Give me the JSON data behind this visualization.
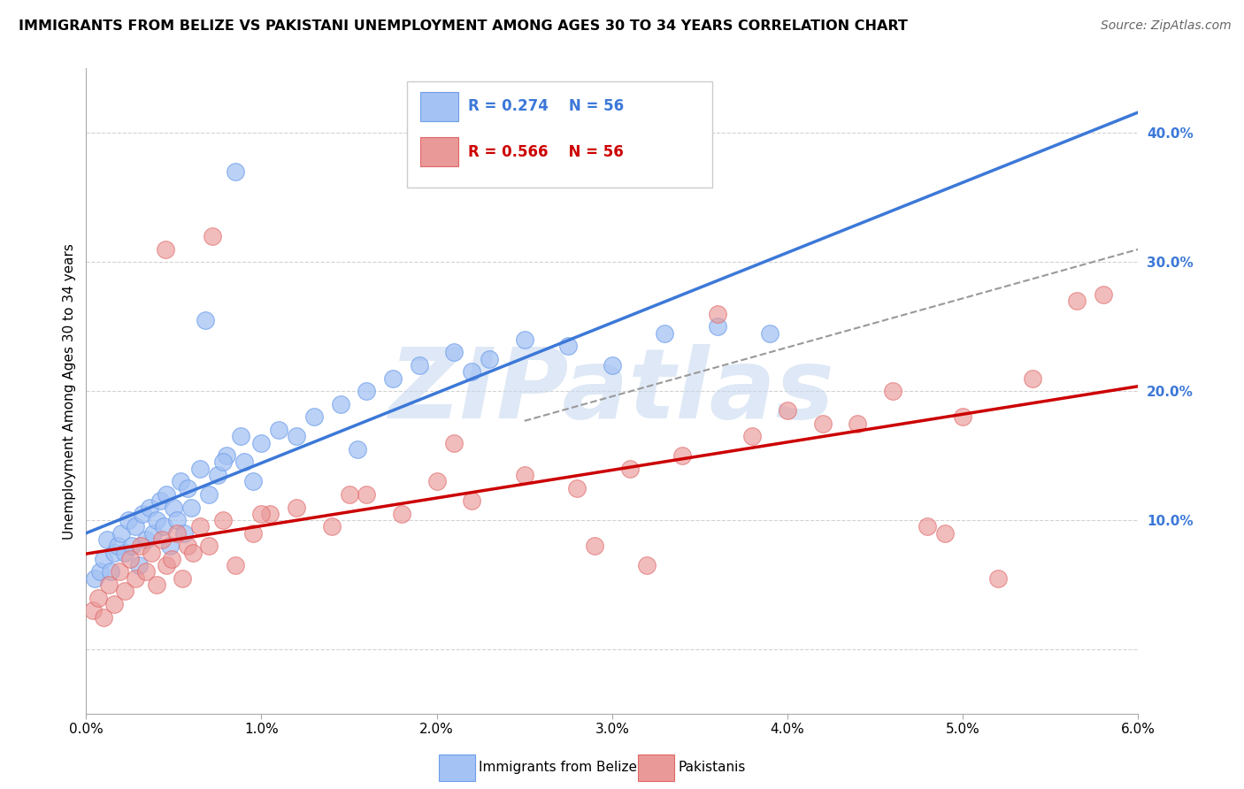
{
  "title": "IMMIGRANTS FROM BELIZE VS PAKISTANI UNEMPLOYMENT AMONG AGES 30 TO 34 YEARS CORRELATION CHART",
  "source": "Source: ZipAtlas.com",
  "ylabel": "Unemployment Among Ages 30 to 34 years",
  "xlim": [
    0.0,
    6.0
  ],
  "ylim": [
    -5.0,
    45.0
  ],
  "yticks_right": [
    10.0,
    20.0,
    30.0,
    40.0
  ],
  "ytick_labels_right": [
    "10.0%",
    "20.0%",
    "30.0%",
    "40.0%"
  ],
  "xtick_vals": [
    0,
    1,
    2,
    3,
    4,
    5,
    6
  ],
  "xtick_labels": [
    "0.0%",
    "1.0%",
    "2.0%",
    "3.0%",
    "4.0%",
    "5.0%",
    "6.0%"
  ],
  "blue_R": "R = 0.274",
  "blue_N": "N = 56",
  "pink_R": "R = 0.566",
  "pink_N": "N = 56",
  "blue_color": "#a4c2f4",
  "blue_edge_color": "#6d9eeb",
  "pink_color": "#ea9999",
  "pink_edge_color": "#e06666",
  "trend_blue_color": "#3c78d8",
  "trend_pink_color": "#cc0000",
  "trend_dashed_color": "#888888",
  "grid_color": "#c0c0c0",
  "watermark_color": "#c9d9f0",
  "watermark_text": "ZIPatlas",
  "legend_label_blue": "Immigrants from Belize",
  "legend_label_pink": "Pakistanis",
  "blue_x": [
    0.05,
    0.08,
    0.1,
    0.12,
    0.14,
    0.16,
    0.18,
    0.2,
    0.22,
    0.24,
    0.26,
    0.28,
    0.3,
    0.32,
    0.34,
    0.36,
    0.38,
    0.4,
    0.42,
    0.44,
    0.46,
    0.48,
    0.5,
    0.52,
    0.54,
    0.56,
    0.58,
    0.6,
    0.65,
    0.7,
    0.75,
    0.8,
    0.9,
    0.95,
    1.0,
    1.1,
    1.2,
    1.3,
    1.45,
    1.6,
    1.75,
    1.9,
    2.1,
    2.3,
    2.5,
    2.75,
    3.0,
    3.3,
    3.6,
    3.9,
    0.85,
    1.55,
    2.2,
    0.68,
    0.78,
    0.88
  ],
  "blue_y": [
    5.5,
    6.0,
    7.0,
    8.5,
    6.0,
    7.5,
    8.0,
    9.0,
    7.5,
    10.0,
    8.0,
    9.5,
    6.5,
    10.5,
    8.5,
    11.0,
    9.0,
    10.0,
    11.5,
    9.5,
    12.0,
    8.0,
    11.0,
    10.0,
    13.0,
    9.0,
    12.5,
    11.0,
    14.0,
    12.0,
    13.5,
    15.0,
    14.5,
    13.0,
    16.0,
    17.0,
    16.5,
    18.0,
    19.0,
    20.0,
    21.0,
    22.0,
    23.0,
    22.5,
    24.0,
    23.5,
    22.0,
    24.5,
    25.0,
    24.5,
    37.0,
    15.5,
    21.5,
    25.5,
    14.5,
    16.5
  ],
  "pink_x": [
    0.04,
    0.07,
    0.1,
    0.13,
    0.16,
    0.19,
    0.22,
    0.25,
    0.28,
    0.31,
    0.34,
    0.37,
    0.4,
    0.43,
    0.46,
    0.49,
    0.52,
    0.55,
    0.58,
    0.61,
    0.65,
    0.7,
    0.78,
    0.85,
    0.95,
    1.05,
    1.2,
    1.4,
    1.6,
    1.8,
    2.0,
    2.2,
    2.5,
    2.8,
    3.1,
    3.4,
    3.8,
    4.2,
    4.6,
    5.0,
    5.4,
    5.8,
    4.9,
    5.65,
    0.45,
    0.72,
    1.0,
    1.5,
    2.1,
    3.6,
    4.4,
    5.2,
    4.0,
    2.9,
    3.2,
    4.8
  ],
  "pink_y": [
    3.0,
    4.0,
    2.5,
    5.0,
    3.5,
    6.0,
    4.5,
    7.0,
    5.5,
    8.0,
    6.0,
    7.5,
    5.0,
    8.5,
    6.5,
    7.0,
    9.0,
    5.5,
    8.0,
    7.5,
    9.5,
    8.0,
    10.0,
    6.5,
    9.0,
    10.5,
    11.0,
    9.5,
    12.0,
    10.5,
    13.0,
    11.5,
    13.5,
    12.5,
    14.0,
    15.0,
    16.5,
    17.5,
    20.0,
    18.0,
    21.0,
    27.5,
    9.0,
    27.0,
    31.0,
    32.0,
    10.5,
    12.0,
    16.0,
    26.0,
    17.5,
    5.5,
    18.5,
    8.0,
    6.5,
    9.5
  ]
}
